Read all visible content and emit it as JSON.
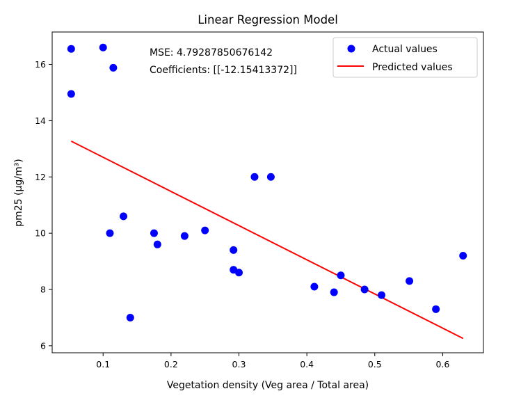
{
  "chart_data": {
    "type": "scatter",
    "title": "Linear Regression Model",
    "xlabel": "Vegetation density (Veg area / Total area)",
    "ylabel": "pm25 (µg/m³)",
    "xlim": [
      0.025,
      0.66
    ],
    "ylim": [
      5.75,
      17.15
    ],
    "xticks": [
      0.1,
      0.2,
      0.3,
      0.4,
      0.5,
      0.6
    ],
    "xtick_labels": [
      "0.1",
      "0.2",
      "0.3",
      "0.4",
      "0.5",
      "0.6"
    ],
    "yticks": [
      6,
      8,
      10,
      12,
      14,
      16
    ],
    "ytick_labels": [
      "6",
      "8",
      "10",
      "12",
      "14",
      "16"
    ],
    "grid": false,
    "legend_position": "top-right",
    "annotations": [
      "MSE: 4.79287850676142",
      "Coefficients: [[-12.15413372]]"
    ],
    "series": [
      {
        "name": "Actual values",
        "kind": "scatter",
        "color": "#0000ff",
        "points": [
          [
            0.053,
            16.55
          ],
          [
            0.1,
            16.6
          ],
          [
            0.115,
            15.88
          ],
          [
            0.053,
            14.95
          ],
          [
            0.13,
            10.6
          ],
          [
            0.11,
            10.0
          ],
          [
            0.175,
            10.0
          ],
          [
            0.18,
            9.6
          ],
          [
            0.22,
            9.9
          ],
          [
            0.25,
            10.1
          ],
          [
            0.14,
            7.0
          ],
          [
            0.292,
            9.4
          ],
          [
            0.292,
            8.7
          ],
          [
            0.3,
            8.6
          ],
          [
            0.323,
            12.0
          ],
          [
            0.347,
            12.0
          ],
          [
            0.411,
            8.1
          ],
          [
            0.44,
            7.9
          ],
          [
            0.45,
            8.5
          ],
          [
            0.485,
            8.0
          ],
          [
            0.51,
            7.8
          ],
          [
            0.551,
            8.3
          ],
          [
            0.59,
            7.3
          ],
          [
            0.63,
            9.2
          ]
        ]
      },
      {
        "name": "Predicted values",
        "kind": "line",
        "color": "#ff0000",
        "points": [
          [
            0.053,
            13.27
          ],
          [
            0.63,
            6.26
          ]
        ]
      }
    ]
  }
}
